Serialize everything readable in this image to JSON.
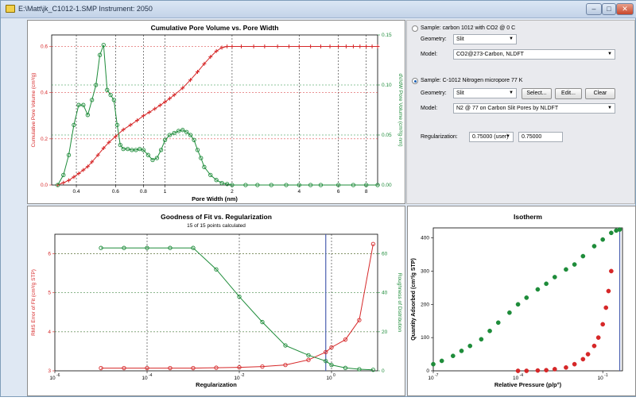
{
  "window": {
    "title": "E:\\Matt\\jk_C1012-1.SMP Instrument: 2050",
    "icons": {
      "app": "folder-icon",
      "min": "minimize-icon",
      "max": "maximize-icon",
      "close": "close-icon"
    },
    "min_glyph": "–",
    "max_glyph": "□",
    "close_glyph": "✕"
  },
  "controls": {
    "sample1": {
      "label": "Sample: carbon 1012 with CO2 @ 0 C",
      "selected": false,
      "geometry_label": "Geometry:",
      "geometry_value": "Slit",
      "model_label": "Model:",
      "model_value": "CO2@273-Carbon, NLDFT"
    },
    "sample2": {
      "label": "Sample: C-1012 Nitrogen micropore 77 K",
      "selected": true,
      "geometry_label": "Geometry:",
      "geometry_value": "Slit",
      "select_button": "Select...",
      "edit_button": "Edit...",
      "clear_button": "Clear",
      "model_label": "Model:",
      "model_value": "N2 @ 77 on Carbon Slit Pores by NLDFT"
    },
    "regularization": {
      "label": "Regularization:",
      "combo_value": "0.75000 (user)",
      "text_value": "0.75000"
    },
    "arrow_glyph": "▼"
  },
  "chart_data": [
    {
      "type": "line",
      "title": "Cumulative Pore Volume vs. Pore Width",
      "xlabel": "Pore Width (nm)",
      "ylabel": "Cumulative Pore Volume (cm³/g)",
      "y2label": "dV/dW Pore Volume (cm³/g·nm)",
      "xscale": "log",
      "xlim": [
        0.31,
        9
      ],
      "ylim": [
        0,
        0.65
      ],
      "y2lim": [
        0,
        0.15
      ],
      "xticks": [
        0.4,
        0.6,
        0.8,
        1,
        2,
        4,
        6,
        8
      ],
      "xtick_labels": [
        "0.4",
        "0.6",
        "0.8",
        "1",
        "2",
        "4",
        "6",
        "8"
      ],
      "yticks": [
        0,
        0.2,
        0.4,
        0.6
      ],
      "ytick_labels": [
        "0.0",
        "0.2",
        "0.4",
        "0.6"
      ],
      "y2ticks": [
        0,
        0.05,
        0.1,
        0.15
      ],
      "y2tick_labels": [
        "0.00",
        "0.05",
        "0.10",
        "0.15"
      ],
      "grid": true,
      "series": [
        {
          "name": "",
          "color": "#d62728",
          "marker": "plus",
          "axis": "left",
          "x": [
            0.33,
            0.35,
            0.37,
            0.39,
            0.41,
            0.43,
            0.45,
            0.47,
            0.5,
            0.53,
            0.56,
            0.6,
            0.65,
            0.7,
            0.75,
            0.8,
            0.85,
            0.9,
            0.95,
            1.0,
            1.05,
            1.1,
            1.2,
            1.3,
            1.4,
            1.5,
            1.6,
            1.7,
            1.8,
            1.9,
            2.0,
            2.2,
            2.5,
            2.8,
            3.2,
            3.6,
            4.0,
            4.5,
            5.0,
            5.5,
            6.0,
            6.5,
            7.0,
            7.5,
            8.0,
            8.5,
            9.0
          ],
          "y": [
            0.0,
            0.01,
            0.02,
            0.035,
            0.05,
            0.065,
            0.08,
            0.1,
            0.13,
            0.16,
            0.185,
            0.21,
            0.24,
            0.26,
            0.28,
            0.3,
            0.315,
            0.33,
            0.345,
            0.36,
            0.375,
            0.39,
            0.42,
            0.455,
            0.49,
            0.525,
            0.555,
            0.58,
            0.595,
            0.6,
            0.6,
            0.6,
            0.6,
            0.6,
            0.6,
            0.6,
            0.6,
            0.6,
            0.6,
            0.6,
            0.6,
            0.6,
            0.6,
            0.6,
            0.6,
            0.6,
            0.6
          ]
        },
        {
          "name": "",
          "color": "#1e8c3a",
          "marker": "circle",
          "axis": "right",
          "x": [
            0.33,
            0.35,
            0.37,
            0.39,
            0.41,
            0.43,
            0.45,
            0.47,
            0.49,
            0.51,
            0.53,
            0.55,
            0.57,
            0.59,
            0.61,
            0.63,
            0.65,
            0.68,
            0.71,
            0.74,
            0.77,
            0.8,
            0.84,
            0.88,
            0.92,
            0.96,
            1.0,
            1.05,
            1.1,
            1.15,
            1.2,
            1.25,
            1.3,
            1.35,
            1.4,
            1.45,
            1.5,
            1.6,
            1.7,
            1.8,
            1.9,
            2.0,
            2.3,
            2.6,
            3.0,
            3.5,
            4.0,
            4.5,
            5.0,
            6.0,
            7.0,
            8.0,
            9.0
          ],
          "y": [
            0.0,
            0.01,
            0.03,
            0.06,
            0.08,
            0.08,
            0.07,
            0.085,
            0.1,
            0.13,
            0.14,
            0.095,
            0.09,
            0.085,
            0.06,
            0.04,
            0.036,
            0.036,
            0.035,
            0.035,
            0.036,
            0.035,
            0.03,
            0.025,
            0.027,
            0.035,
            0.045,
            0.05,
            0.052,
            0.054,
            0.055,
            0.053,
            0.05,
            0.045,
            0.035,
            0.027,
            0.018,
            0.01,
            0.005,
            0.002,
            0.001,
            0.0,
            0.0,
            0.0,
            0.0,
            0.0,
            0.0,
            0.0,
            0.0,
            0.0,
            0.0,
            0.0,
            0.0
          ]
        }
      ]
    },
    {
      "type": "line",
      "title": "Goodness of Fit vs. Regularization",
      "subtitle": "15 of 15 points calculated",
      "xlabel": "Regularization",
      "ylabel": "RMS Error of Fit (cm³/g STP)",
      "y2label": "Roughness of Distribution",
      "xscale": "log",
      "xlim": [
        1e-06,
        10
      ],
      "ylim": [
        3,
        6.5
      ],
      "y2lim": [
        0,
        70
      ],
      "xticks": [
        1e-06,
        0.0001,
        0.01,
        1
      ],
      "xtick_base": [
        "10",
        "10",
        "10",
        "10"
      ],
      "xtick_exp": [
        "-6",
        "-4",
        "-2",
        "0"
      ],
      "yticks": [
        3,
        4,
        5,
        6
      ],
      "ytick_labels": [
        "3",
        "4",
        "5",
        "6"
      ],
      "y2ticks": [
        0,
        20,
        40,
        60
      ],
      "y2tick_labels": [
        "0",
        "20",
        "40",
        "60"
      ],
      "grid": true,
      "marker_line_x": 0.75,
      "series": [
        {
          "name": "",
          "color": "#d62728",
          "marker": "circle",
          "axis": "left",
          "x": [
            1e-05,
            3.16e-05,
            0.0001,
            0.000316,
            0.001,
            0.00316,
            0.01,
            0.0316,
            0.1,
            0.316,
            0.75,
            1,
            2,
            4,
            8
          ],
          "y": [
            3.07,
            3.07,
            3.07,
            3.07,
            3.07,
            3.08,
            3.09,
            3.11,
            3.15,
            3.28,
            3.48,
            3.6,
            3.8,
            4.3,
            6.25
          ]
        },
        {
          "name": "",
          "color": "#1e8c3a",
          "marker": "circle",
          "axis": "right",
          "x": [
            1e-05,
            3.16e-05,
            0.0001,
            0.000316,
            0.001,
            0.00316,
            0.01,
            0.0316,
            0.1,
            0.316,
            0.75,
            1,
            2,
            4,
            8
          ],
          "y": [
            63,
            63,
            63,
            63,
            63,
            52,
            38,
            25,
            13,
            8,
            5,
            3,
            1.5,
            0.8,
            0.5
          ]
        }
      ]
    },
    {
      "type": "scatter",
      "title": "Isotherm",
      "xlabel": "Relative Pressure (p/p°)",
      "ylabel": "Quantity Adsorbed (cm³/g STP)",
      "xscale": "log",
      "xlim": [
        1e-07,
        0.5
      ],
      "ylim": [
        0,
        430
      ],
      "xticks": [
        1e-07,
        0.0001,
        0.1
      ],
      "xtick_base": [
        "10",
        "10",
        "10"
      ],
      "xtick_exp": [
        "-7",
        "-4",
        "-1"
      ],
      "yticks": [
        0,
        100,
        200,
        300,
        400
      ],
      "ytick_labels": [
        "0",
        "100",
        "200",
        "300",
        "400"
      ],
      "grid": false,
      "marker_line_x": 0.4,
      "series": [
        {
          "name": "",
          "color": "#1e8c3a",
          "marker": "circle",
          "x": [
            1e-07,
            2e-07,
            5e-07,
            1e-06,
            2e-06,
            5e-06,
            1e-05,
            2e-05,
            5e-05,
            0.0001,
            0.0002,
            0.0005,
            0.001,
            0.002,
            0.005,
            0.01,
            0.02,
            0.05,
            0.1,
            0.2,
            0.3,
            0.4
          ],
          "y": [
            20,
            30,
            45,
            60,
            75,
            95,
            120,
            145,
            175,
            200,
            220,
            245,
            262,
            282,
            305,
            320,
            345,
            375,
            395,
            415,
            422,
            425
          ]
        },
        {
          "name": "",
          "color": "#d62728",
          "marker": "circle",
          "x": [
            0.0001,
            0.0002,
            0.0005,
            0.001,
            0.002,
            0.005,
            0.01,
            0.02,
            0.03,
            0.05,
            0.07,
            0.1,
            0.13,
            0.16,
            0.2
          ],
          "y": [
            0,
            0,
            1,
            2,
            5,
            10,
            20,
            35,
            50,
            75,
            100,
            140,
            190,
            240,
            300
          ]
        }
      ]
    }
  ]
}
